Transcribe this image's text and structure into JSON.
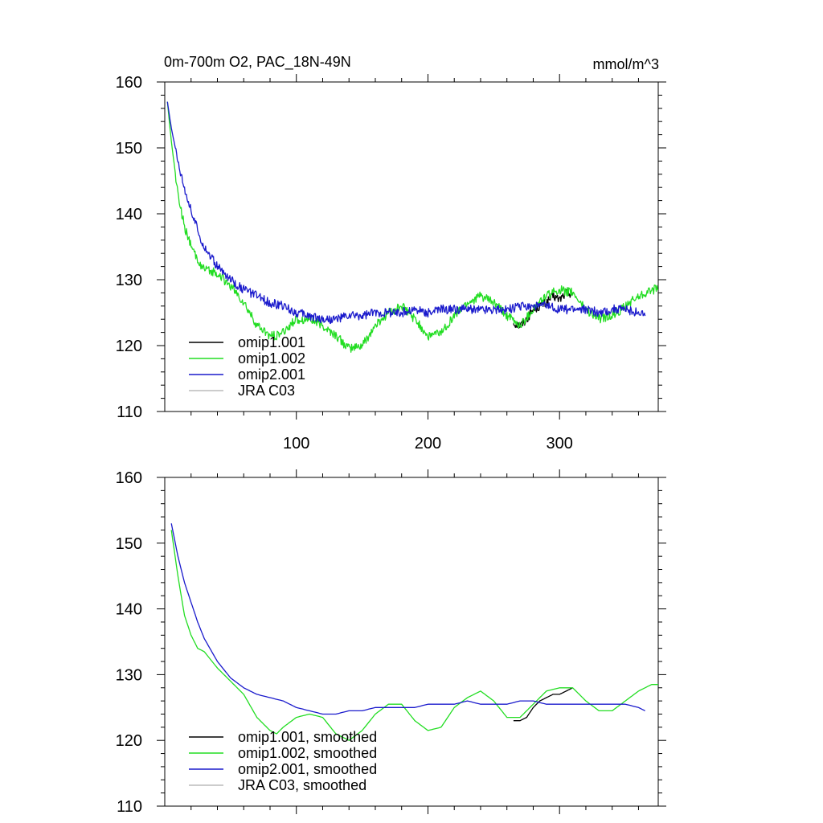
{
  "title_left": "0m-700m O2, PAC_18N-49N",
  "title_right": "mmol/m^3",
  "colors": {
    "omip1_001": "#000000",
    "omip1_002": "#22dd22",
    "omip2_001": "#1a1acc",
    "jra_c03": "#bbbbbb"
  },
  "chart_data": [
    {
      "type": "line",
      "panel": "top",
      "title": "0m-700m O2, PAC_18N-49N",
      "units": "mmol/m^3",
      "xlim": [
        0,
        375
      ],
      "ylim": [
        110,
        160
      ],
      "xticks": [
        100,
        200,
        300
      ],
      "yticks": [
        110,
        120,
        130,
        140,
        150,
        160
      ],
      "legend_position": "bottom-left",
      "noisy": true,
      "series": [
        {
          "name": "omip1.001",
          "color_key": "omip1_001",
          "x": [
            265,
            270,
            275,
            280,
            285,
            290,
            295,
            300,
            305,
            310
          ],
          "y": [
            123.5,
            123,
            124,
            125.5,
            126,
            126.5,
            127.5,
            127,
            128,
            128
          ]
        },
        {
          "name": "omip1.002",
          "color_key": "omip1_002",
          "x": [
            2,
            5,
            10,
            15,
            20,
            25,
            30,
            40,
            50,
            60,
            70,
            80,
            85,
            90,
            100,
            110,
            120,
            130,
            140,
            150,
            160,
            170,
            180,
            190,
            200,
            210,
            220,
            230,
            240,
            250,
            260,
            270,
            280,
            290,
            300,
            310,
            320,
            330,
            340,
            350,
            360,
            370,
            375
          ],
          "y": [
            157,
            151,
            143,
            138,
            135,
            133,
            131.5,
            131,
            129,
            126.5,
            123,
            121.5,
            121.5,
            122,
            124,
            124,
            123,
            121.5,
            119.5,
            120,
            123,
            125,
            126,
            124,
            121.5,
            122,
            124.5,
            126.5,
            127.5,
            126.5,
            124.5,
            123,
            125.5,
            127.5,
            128.5,
            128,
            125.5,
            124,
            124.5,
            126,
            127.5,
            128.5,
            128.5
          ]
        },
        {
          "name": "omip2.001",
          "color_key": "omip2_001",
          "x": [
            2,
            5,
            10,
            15,
            20,
            25,
            30,
            40,
            50,
            60,
            70,
            80,
            90,
            100,
            110,
            120,
            130,
            140,
            150,
            160,
            170,
            180,
            190,
            200,
            210,
            220,
            230,
            240,
            250,
            260,
            270,
            280,
            290,
            300,
            310,
            320,
            330,
            340,
            350,
            360,
            365
          ],
          "y": [
            157,
            153,
            148,
            144,
            140.5,
            137.5,
            135,
            132,
            130,
            128.5,
            127.5,
            126.5,
            126,
            125,
            124.5,
            124,
            124,
            124.5,
            124.5,
            125,
            125,
            125,
            125.5,
            125,
            125.5,
            125.5,
            125.5,
            125.5,
            125.5,
            125.5,
            126,
            126,
            126,
            125.5,
            125.5,
            125.5,
            125,
            125.5,
            125.5,
            125,
            124.5
          ]
        },
        {
          "name": "JRA C03",
          "color_key": "jra_c03",
          "x": [],
          "y": []
        }
      ]
    },
    {
      "type": "line",
      "panel": "bottom",
      "xlim": [
        0,
        375
      ],
      "ylim": [
        110,
        160
      ],
      "xticks": [
        100,
        200,
        300
      ],
      "yticks": [
        110,
        120,
        130,
        140,
        150,
        160
      ],
      "legend_position": "bottom-left",
      "noisy": false,
      "series": [
        {
          "name": "omip1.001, smoothed",
          "color_key": "omip1_001",
          "x": [
            265,
            270,
            275,
            280,
            285,
            290,
            295,
            300,
            305,
            310
          ],
          "y": [
            123,
            123,
            123.5,
            125,
            126,
            126.5,
            127,
            127,
            127.5,
            128
          ]
        },
        {
          "name": "omip1.002, smoothed",
          "color_key": "omip1_002",
          "x": [
            5,
            10,
            15,
            20,
            25,
            30,
            40,
            50,
            60,
            70,
            80,
            85,
            90,
            100,
            110,
            120,
            130,
            140,
            150,
            160,
            170,
            180,
            190,
            200,
            210,
            220,
            230,
            240,
            250,
            260,
            270,
            280,
            290,
            300,
            310,
            320,
            330,
            340,
            350,
            360,
            370,
            375
          ],
          "y": [
            152,
            145,
            139,
            136,
            134,
            133.5,
            131,
            129,
            127,
            123.5,
            121.5,
            121,
            122,
            123.5,
            124,
            123.5,
            121,
            120,
            121.5,
            124,
            125.5,
            125.5,
            123,
            121.5,
            122,
            125,
            126.5,
            127.5,
            126,
            123.5,
            123.5,
            125.5,
            127.5,
            128,
            128,
            126,
            124.5,
            124.5,
            126,
            127.5,
            128.5,
            128.5
          ]
        },
        {
          "name": "omip2.001, smoothed",
          "color_key": "omip2_001",
          "x": [
            5,
            10,
            15,
            20,
            25,
            30,
            40,
            50,
            60,
            70,
            80,
            90,
            100,
            110,
            120,
            130,
            140,
            150,
            160,
            170,
            180,
            190,
            200,
            210,
            220,
            230,
            240,
            250,
            260,
            270,
            280,
            290,
            300,
            310,
            320,
            330,
            340,
            350,
            360,
            365
          ],
          "y": [
            153,
            148,
            144,
            141,
            138,
            135.5,
            132,
            129.5,
            128,
            127,
            126.5,
            126,
            125,
            124.5,
            124,
            124,
            124.5,
            124.5,
            125,
            125,
            125,
            125,
            125.5,
            125.5,
            125.5,
            126,
            125.5,
            125.5,
            125.5,
            126,
            126,
            125.5,
            125.5,
            125.5,
            125.5,
            125.5,
            125.5,
            125.5,
            125,
            124.5
          ]
        },
        {
          "name": "JRA C03, smoothed",
          "color_key": "jra_c03",
          "x": [],
          "y": []
        }
      ]
    }
  ]
}
